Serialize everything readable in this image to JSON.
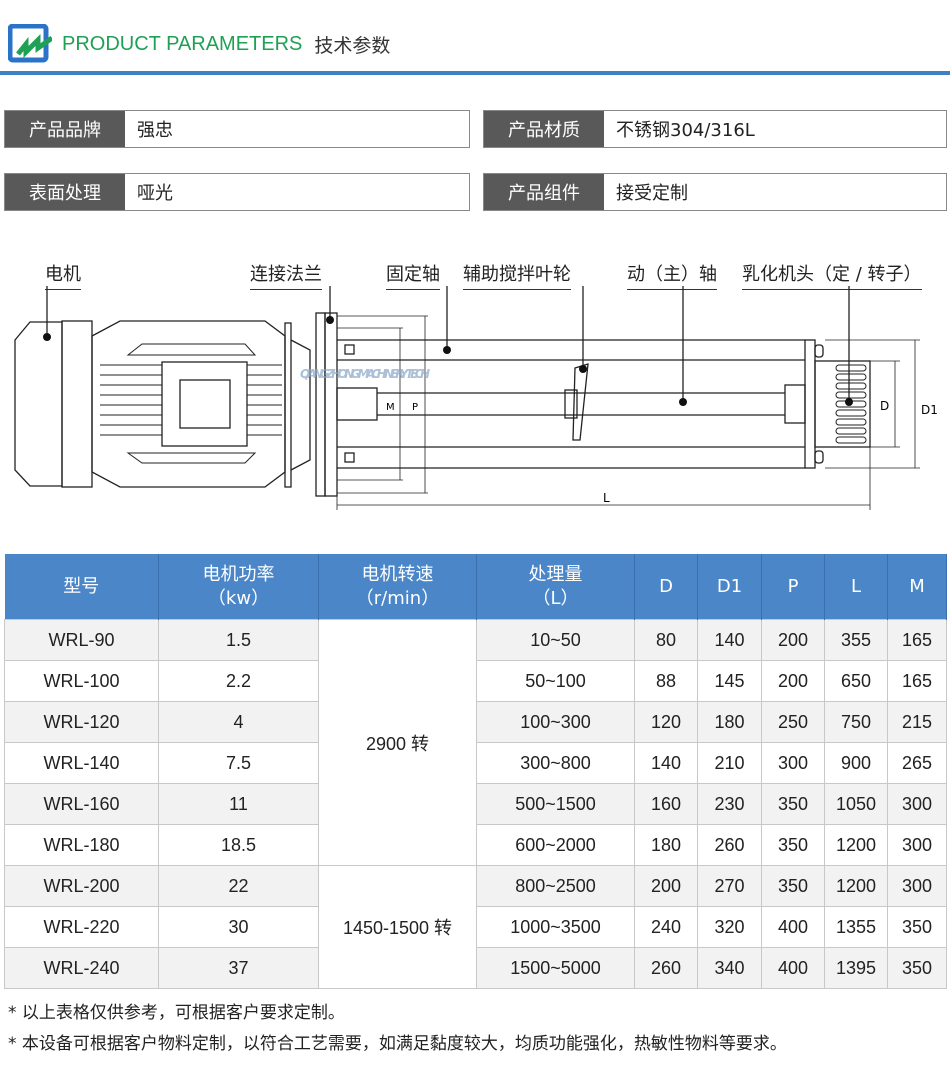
{
  "header": {
    "title_en": "PRODUCT PARAMETERS",
    "title_cn": "技术参数",
    "logo_icon": "qiangzhong-logo"
  },
  "info": [
    {
      "key": "产品品牌",
      "value": "强忠"
    },
    {
      "key": "产品材质",
      "value": "不锈钢304/316L"
    },
    {
      "key": "表面处理",
      "value": "哑光"
    },
    {
      "key": "产品组件",
      "value": "接受定制"
    }
  ],
  "diagram": {
    "labels": [
      "电机",
      "连接法兰",
      "固定轴",
      "辅助搅拌叶轮",
      "动（主）轴",
      "乳化机头（定 / 转子）"
    ],
    "dims": {
      "d": "D",
      "d1": "D1",
      "l": "L",
      "m": "M",
      "p": "P"
    },
    "watermark": "QIANGZHONG MACHINERY TECH"
  },
  "table": {
    "headers": [
      [
        "型号",
        ""
      ],
      [
        "电机功率",
        "（kw）"
      ],
      [
        "电机转速",
        "（r/min）"
      ],
      [
        "处理量",
        "（L）"
      ],
      [
        "D",
        ""
      ],
      [
        "D1",
        ""
      ],
      [
        "P",
        ""
      ],
      [
        "L",
        ""
      ],
      [
        "M",
        ""
      ]
    ],
    "speed_groups": [
      "2900 转",
      "1450-1500 转"
    ],
    "rows": [
      {
        "model": "WRL-90",
        "power": "1.5",
        "flow": "10~50",
        "D": "80",
        "D1": "140",
        "P": "200",
        "L": "355",
        "M": "165"
      },
      {
        "model": "WRL-100",
        "power": "2.2",
        "flow": "50~100",
        "D": "88",
        "D1": "145",
        "P": "200",
        "L": "650",
        "M": "165"
      },
      {
        "model": "WRL-120",
        "power": "4",
        "flow": "100~300",
        "D": "120",
        "D1": "180",
        "P": "250",
        "L": "750",
        "M": "215"
      },
      {
        "model": "WRL-140",
        "power": "7.5",
        "flow": "300~800",
        "D": "140",
        "D1": "210",
        "P": "300",
        "L": "900",
        "M": "265"
      },
      {
        "model": "WRL-160",
        "power": "11",
        "flow": "500~1500",
        "D": "160",
        "D1": "230",
        "P": "350",
        "L": "1050",
        "M": "300"
      },
      {
        "model": "WRL-180",
        "power": "18.5",
        "flow": "600~2000",
        "D": "180",
        "D1": "260",
        "P": "350",
        "L": "1200",
        "M": "300"
      },
      {
        "model": "WRL-200",
        "power": "22",
        "flow": "800~2500",
        "D": "200",
        "D1": "270",
        "P": "350",
        "L": "1200",
        "M": "300"
      },
      {
        "model": "WRL-220",
        "power": "30",
        "flow": "1000~3500",
        "D": "240",
        "D1": "320",
        "P": "400",
        "L": "1355",
        "M": "350"
      },
      {
        "model": "WRL-240",
        "power": "37",
        "flow": "1500~5000",
        "D": "260",
        "D1": "340",
        "P": "400",
        "L": "1395",
        "M": "350"
      }
    ]
  },
  "notes": [
    "* 以上表格仅供参考，可根据客户要求定制。",
    "* 本设备可根据客户物料定制，以符合工艺需要，如满足黏度较大，均质功能强化，热敏性物料等要求。"
  ],
  "colors": {
    "accent": "#3f7fc4",
    "title_green": "#1fa155",
    "table_header": "#4a86c8",
    "label_bg": "#595959"
  }
}
